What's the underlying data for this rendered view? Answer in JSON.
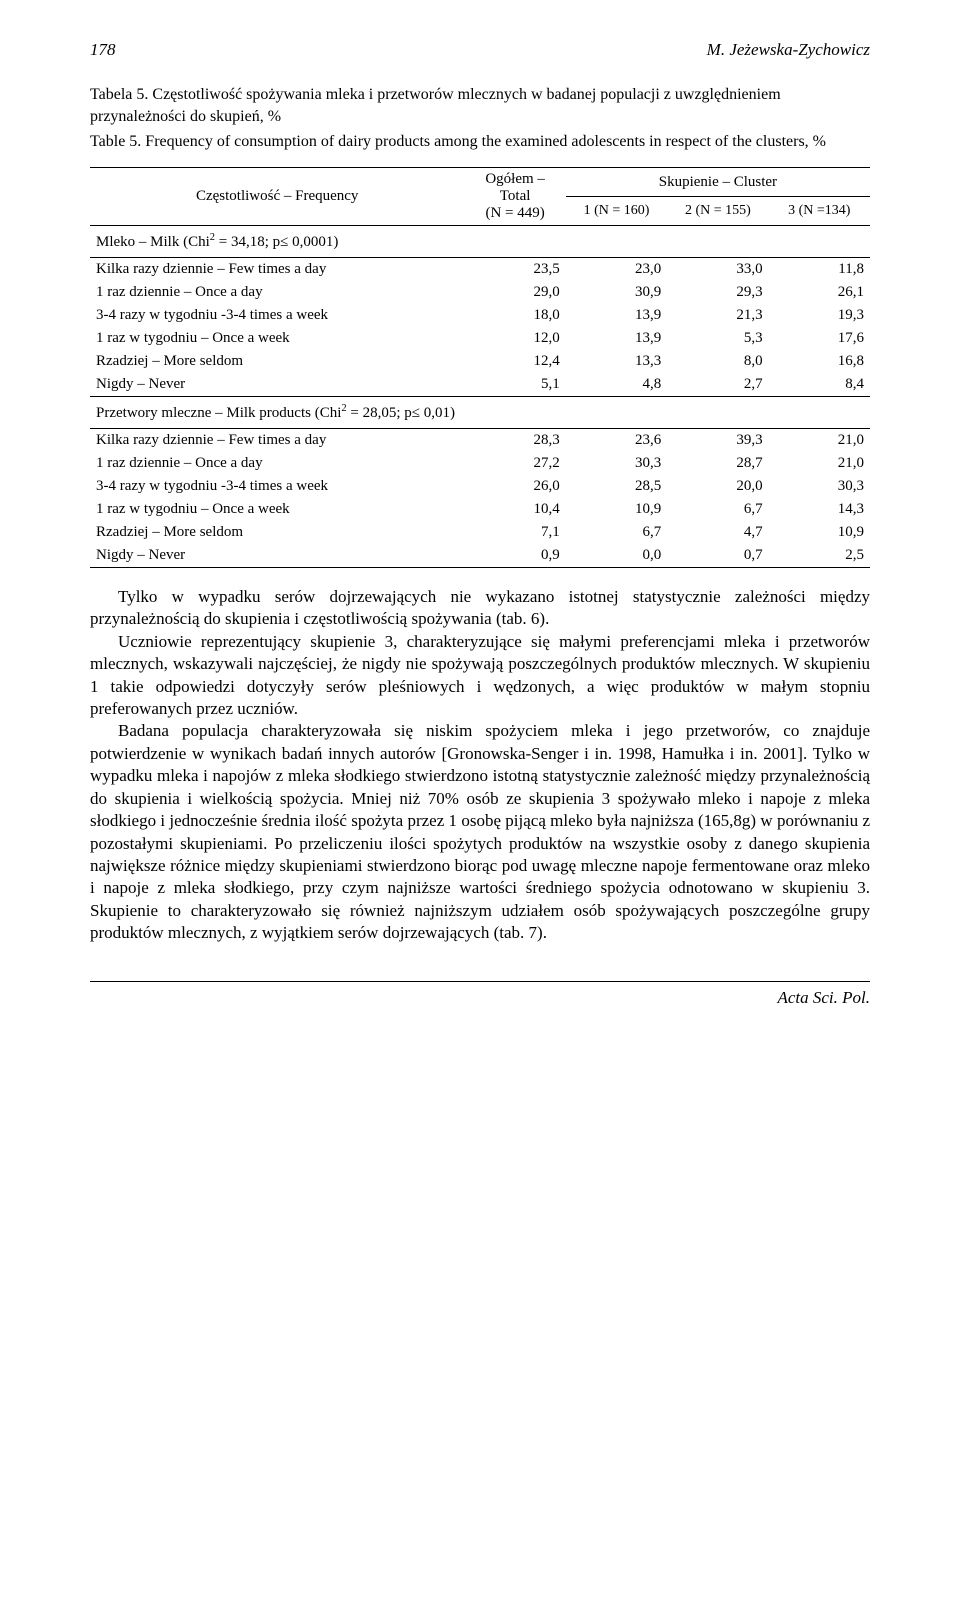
{
  "header": {
    "page_number": "178",
    "author": "M. Jeżewska-Zychowicz"
  },
  "table": {
    "title_pl": "Tabela 5. Częstotliwość spożywania mleka i przetworów mlecznych w badanej populacji z uwzględnieniem przynależności do skupień, %",
    "title_en": "Table 5. Frequency of consumption of dairy products among the examined adolescents in respect of the clusters, %",
    "head": {
      "freq_label": "Częstotliwość – Frequency",
      "total_label_l1": "Ogółem – Total",
      "total_label_l2": "(N = 449)",
      "cluster_label": "Skupienie – Cluster",
      "c1": "1 (N = 160)",
      "c2": "2 (N = 155)",
      "c3": "3 (N =134)"
    },
    "section1": {
      "label_html": "Mleko – Milk (Chi<sup>2</sup> = 34,18; p≤ 0,0001)",
      "rows": [
        {
          "l": "Kilka razy dziennie – Few times a day",
          "v": [
            "23,5",
            "23,0",
            "33,0",
            "11,8"
          ]
        },
        {
          "l": "1 raz dziennie – Once a day",
          "v": [
            "29,0",
            "30,9",
            "29,3",
            "26,1"
          ]
        },
        {
          "l": "3-4 razy w tygodniu -3-4 times a week",
          "v": [
            "18,0",
            "13,9",
            "21,3",
            "19,3"
          ]
        },
        {
          "l": "1 raz w tygodniu – Once a week",
          "v": [
            "12,0",
            "13,9",
            "5,3",
            "17,6"
          ]
        },
        {
          "l": "Rzadziej – More seldom",
          "v": [
            "12,4",
            "13,3",
            "8,0",
            "16,8"
          ]
        },
        {
          "l": "Nigdy – Never",
          "v": [
            "5,1",
            "4,8",
            "2,7",
            "8,4"
          ]
        }
      ]
    },
    "section2": {
      "label_html": "Przetwory mleczne – Milk products (Chi<sup>2</sup> = 28,05; p≤ 0,01)",
      "rows": [
        {
          "l": "Kilka razy dziennie – Few times a day",
          "v": [
            "28,3",
            "23,6",
            "39,3",
            "21,0"
          ]
        },
        {
          "l": "1 raz dziennie – Once a day",
          "v": [
            "27,2",
            "30,3",
            "28,7",
            "21,0"
          ]
        },
        {
          "l": "3-4 razy w tygodniu -3-4 times a week",
          "v": [
            "26,0",
            "28,5",
            "20,0",
            "30,3"
          ]
        },
        {
          "l": "1 raz w tygodniu – Once a week",
          "v": [
            "10,4",
            "10,9",
            "6,7",
            "14,3"
          ]
        },
        {
          "l": "Rzadziej – More seldom",
          "v": [
            "7,1",
            "6,7",
            "4,7",
            "10,9"
          ]
        },
        {
          "l": "Nigdy – Never",
          "v": [
            "0,9",
            "0,0",
            "0,7",
            "2,5"
          ]
        }
      ]
    }
  },
  "paragraphs": [
    "Tylko w wypadku serów dojrzewających nie wykazano istotnej statystycznie zależności między przynależnością do skupienia i częstotliwością spożywania (tab. 6).",
    "Uczniowie reprezentujący skupienie 3, charakteryzujące się małymi preferencjami mleka i przetworów mlecznych, wskazywali najczęściej, że nigdy nie spożywają poszczególnych produktów mlecznych. W skupieniu 1 takie odpowiedzi dotyczyły serów pleśniowych i wędzonych, a więc produktów w małym stopniu preferowanych przez uczniów.",
    "Badana populacja charakteryzowała się niskim spożyciem mleka i jego przetworów, co znajduje potwierdzenie w wynikach badań innych autorów [Gronowska-Senger i in. 1998, Hamułka i in. 2001]. Tylko w wypadku mleka i napojów z mleka słodkiego stwierdzono istotną statystycznie zależność między przynależnością do skupienia i wielkością spożycia. Mniej niż 70% osób ze skupienia 3 spożywało mleko i napoje z mleka słodkiego i jednocześnie średnia ilość spożyta przez 1 osobę pijącą mleko była najniższa (165,8g) w porównaniu z pozostałymi skupieniami. Po przeliczeniu ilości spożytych produktów na wszystkie osoby z danego skupienia największe różnice między skupieniami stwierdzono biorąc pod uwagę mleczne napoje fermentowane oraz mleko i napoje z mleka słodkiego, przy czym najniższe wartości średniego spożycia odnotowano w skupieniu 3. Skupienie to charakteryzowało się również najniższym udziałem osób spożywających poszczególne grupy produktów mlecznych, z wyjątkiem serów dojrzewających (tab. 7)."
  ],
  "footer": "Acta Sci. Pol."
}
